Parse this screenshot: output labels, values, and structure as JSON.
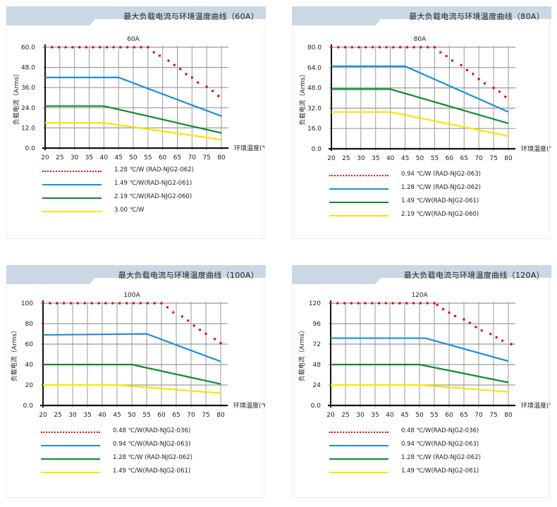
{
  "panels": [
    {
      "header": "最大负载电流与环境温度曲线（60A）",
      "chart_data": {
        "type": "line",
        "title": "60A",
        "xlabel": "环境温度(℃)",
        "ylabel": "负载电流（Arms）",
        "xlim": [
          20,
          80
        ],
        "ylim": [
          0,
          60
        ],
        "xticks": [
          "20",
          "25",
          "30",
          "35",
          "40",
          "45",
          "50",
          "55",
          "60",
          "65",
          "70",
          "75",
          "80"
        ],
        "yticks": [
          "0.0",
          "12.0",
          "24.0",
          "36.0",
          "48.0",
          "60.0"
        ],
        "grid": true,
        "series": [
          {
            "name": "1.28 ℃/W  (RAD-NJG2-062)",
            "color": "#e8001c",
            "style": "dotted",
            "points": [
              [
                20,
                60
              ],
              [
                55,
                60
              ],
              [
                57,
                57
              ],
              [
                59,
                55
              ],
              [
                62,
                52
              ],
              [
                64,
                49.5
              ],
              [
                66,
                47
              ],
              [
                68,
                44
              ],
              [
                70,
                42
              ],
              [
                72,
                39
              ],
              [
                75,
                36.5
              ],
              [
                77,
                34
              ],
              [
                79,
                31
              ]
            ]
          },
          {
            "name": "1.49 ℃/W(RAD-NJG2-061)",
            "color": "#1a8fe0",
            "style": "solid",
            "points": [
              [
                20,
                42
              ],
              [
                45,
                42
              ],
              [
                80,
                19
              ]
            ]
          },
          {
            "name": "2.19 ℃/W(RAD-NJG2-060)",
            "color": "#0f8a2e",
            "style": "solid",
            "points": [
              [
                20,
                25
              ],
              [
                40,
                25
              ],
              [
                80,
                9
              ]
            ]
          },
          {
            "name": "3.00 ℃/W",
            "color": "#f5e600",
            "style": "solid",
            "points": [
              [
                20,
                15
              ],
              [
                40,
                15
              ],
              [
                80,
                5
              ]
            ]
          }
        ]
      }
    },
    {
      "header": "最大负载电流与环境温度曲线（80A）",
      "chart_data": {
        "type": "line",
        "title": "80A",
        "xlabel": "环境温度(℃)",
        "ylabel": "负载电流（Arms）",
        "xlim": [
          20,
          80
        ],
        "ylim": [
          0,
          80
        ],
        "xticks": [
          "20",
          "25",
          "30",
          "35",
          "40",
          "45",
          "50",
          "55",
          "60",
          "65",
          "70",
          "75",
          "80"
        ],
        "yticks": [
          "0.0",
          "16.0",
          "32.0",
          "48.0",
          "64.0",
          "80.0"
        ],
        "grid": true,
        "series": [
          {
            "name": "0.94 ℃/W  (RAD-NJG2-063)",
            "color": "#e8001c",
            "style": "dotted",
            "points": [
              [
                20,
                80
              ],
              [
                55,
                80
              ],
              [
                57,
                76
              ],
              [
                59,
                73
              ],
              [
                61,
                69.5
              ],
              [
                64,
                66
              ],
              [
                66,
                62
              ],
              [
                68,
                59
              ],
              [
                70,
                55
              ],
              [
                72,
                51.5
              ],
              [
                75,
                48
              ],
              [
                77,
                45
              ],
              [
                79,
                41
              ]
            ]
          },
          {
            "name": "1.28 ℃/W  (RAD-NJG2-062)",
            "color": "#1a8fe0",
            "style": "solid",
            "points": [
              [
                20,
                65
              ],
              [
                45,
                65
              ],
              [
                80,
                29
              ]
            ]
          },
          {
            "name": "1.49 ℃/W(RAD-NJG2-061)",
            "color": "#0f8a2e",
            "style": "solid",
            "points": [
              [
                20,
                47
              ],
              [
                40,
                47
              ],
              [
                80,
                20
              ]
            ]
          },
          {
            "name": "2.19 ℃/W(RAD-NJG2-060)",
            "color": "#f5e600",
            "style": "solid",
            "points": [
              [
                20,
                29
              ],
              [
                40,
                29
              ],
              [
                80,
                10
              ]
            ]
          }
        ]
      }
    },
    {
      "header": "最大负载电流与环境温度曲线（100A）",
      "chart_data": {
        "type": "line",
        "title": "100A",
        "xlabel": "环境温度(℃)",
        "ylabel": "负载电流（Arms）",
        "xlim": [
          20,
          80
        ],
        "ylim": [
          0,
          100
        ],
        "xticks": [
          "20",
          "25",
          "30",
          "35",
          "40",
          "45",
          "50",
          "55",
          "60",
          "65",
          "70",
          "75",
          "80"
        ],
        "yticks": [
          "0.0",
          "20",
          "40",
          "60",
          "80",
          "100"
        ],
        "grid": true,
        "series": [
          {
            "name": "0.48 ℃/W(RAD-NJG2-036)",
            "color": "#e8001c",
            "style": "dotted",
            "points": [
              [
                20,
                100
              ],
              [
                60,
                100
              ],
              [
                62,
                96
              ],
              [
                64,
                91
              ],
              [
                67,
                87
              ],
              [
                69,
                83
              ],
              [
                71,
                78
              ],
              [
                73,
                74
              ],
              [
                75,
                70
              ],
              [
                78,
                65
              ],
              [
                80,
                61
              ]
            ]
          },
          {
            "name": "0.94 ℃/W(RAD-NJG2-063)",
            "color": "#1a8fe0",
            "style": "solid",
            "points": [
              [
                20,
                69
              ],
              [
                55,
                70
              ],
              [
                80,
                43
              ]
            ]
          },
          {
            "name": "1.28 ℃/W  (RAD-NJG2-062)",
            "color": "#0f8a2e",
            "style": "solid",
            "points": [
              [
                20,
                40
              ],
              [
                50,
                40
              ],
              [
                80,
                21
              ]
            ]
          },
          {
            "name": "1.49 ℃/W(RAD-NJG2-061)",
            "color": "#f5e600",
            "style": "solid",
            "points": [
              [
                20,
                20
              ],
              [
                45,
                20
              ],
              [
                80,
                12
              ]
            ]
          }
        ]
      }
    },
    {
      "header": "最大负载电流与环境温度曲线（120A）",
      "chart_data": {
        "type": "line",
        "title": "120A",
        "xlabel": "环境温度(℃)",
        "ylabel": "负载电流（Arms）",
        "xlim": [
          20,
          80
        ],
        "ylim": [
          0,
          120
        ],
        "xticks": [
          "20",
          "25",
          "30",
          "35",
          "40",
          "45",
          "50",
          "55",
          "60",
          "65",
          "70",
          "75",
          "80"
        ],
        "yticks": [
          "0.0",
          "24",
          "48",
          "72",
          "96",
          "120"
        ],
        "grid": true,
        "series": [
          {
            "name": "0.48 ℃/W(RAD-NJG2-036)",
            "color": "#e8001c",
            "style": "dotted",
            "points": [
              [
                20,
                120
              ],
              [
                55,
                120
              ],
              [
                56,
                118
              ],
              [
                58,
                113
              ],
              [
                60,
                109
              ],
              [
                62,
                105
              ],
              [
                65,
                101
              ],
              [
                67,
                97
              ],
              [
                69,
                92
              ],
              [
                71,
                88
              ],
              [
                74,
                84
              ],
              [
                76,
                80
              ],
              [
                78,
                76
              ],
              [
                81,
                72
              ]
            ]
          },
          {
            "name": "0.94 ℃/W(RAD-NJG2-063)",
            "color": "#1a8fe0",
            "style": "solid",
            "points": [
              [
                20,
                79
              ],
              [
                52,
                79
              ],
              [
                80,
                52
              ]
            ]
          },
          {
            "name": "1.28 ℃/W  (RAD-NJG2-062)",
            "color": "#0f8a2e",
            "style": "solid",
            "points": [
              [
                20,
                48
              ],
              [
                50,
                48
              ],
              [
                80,
                27
              ]
            ]
          },
          {
            "name": "1.49 ℃/W(RAD-NJG2-061)",
            "color": "#f5e600",
            "style": "solid",
            "points": [
              [
                20,
                24
              ],
              [
                50,
                24
              ],
              [
                80,
                16
              ]
            ]
          }
        ]
      }
    }
  ]
}
